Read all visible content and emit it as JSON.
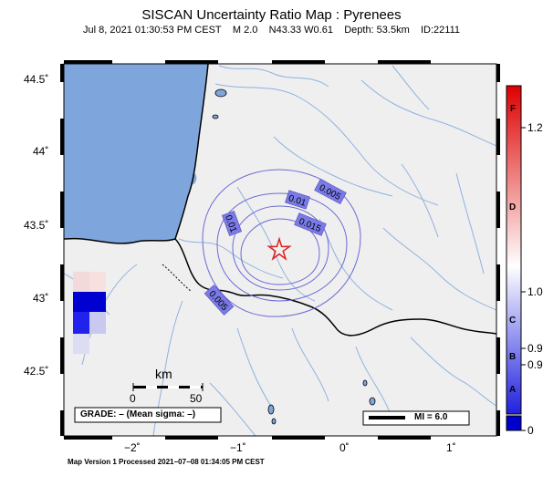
{
  "title": "SISCAN Uncertainty Ratio Map : Pyrenees",
  "subtitle": {
    "date": "Jul  8, 2021 01:30:53 PM CEST",
    "magnitude": "M 2.0",
    "location": "N43.33 W0.61",
    "depth": "Depth: 53.5km",
    "id": "ID:22111"
  },
  "axes": {
    "y_labels": [
      "44.5˚",
      "44˚",
      "43.5˚",
      "43˚",
      "42.5˚"
    ],
    "x_labels": [
      "−2˚",
      "−1˚",
      "0˚",
      "1˚"
    ]
  },
  "contours": [
    {
      "label": "0.005"
    },
    {
      "label": "0.01"
    },
    {
      "label": "0.015"
    },
    {
      "label": "0.01"
    },
    {
      "label": "0.005"
    }
  ],
  "epicenter": {
    "lat": 43.33,
    "lon": -0.61,
    "symbol": "star-icon"
  },
  "scale_bar": {
    "title": "km",
    "start": "0",
    "end": "50"
  },
  "grade_box": "GRADE: – (Mean sigma: –)",
  "mi_box": "MI = 6.0",
  "colorbar": {
    "grade_letters": [
      "F",
      "D",
      "C",
      "B",
      "A"
    ],
    "values": [
      "1.2",
      "1.0",
      "0.9",
      "0.9",
      "0"
    ],
    "colors": {
      "top": "#dd0000",
      "mid": "#ffffff",
      "bottom": "#0000cc"
    }
  },
  "footer": "Map Version 1 Processed 2021−07−08 01:34:05 PM CEST",
  "colors": {
    "land": "#efefef",
    "sea": "#7fa6dc",
    "rivers": "#8fb2e0",
    "contour": "#6a6ad6",
    "label_fill": "#7a7ae8",
    "epicenter": "#e02020"
  }
}
